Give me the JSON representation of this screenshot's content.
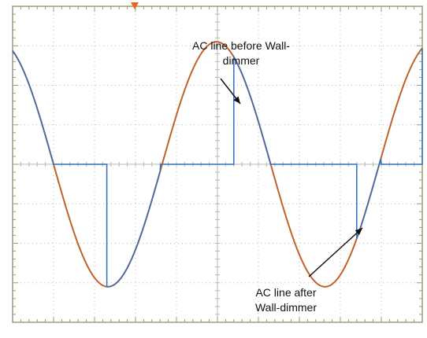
{
  "annotations": {
    "before": [
      "AC line before Wall-",
      "dimmer"
    ],
    "after": [
      "AC line  after",
      "Wall-dimmer"
    ]
  },
  "chart_data": {
    "type": "line",
    "title": "",
    "xlabel": "",
    "ylabel": "",
    "xlim": [
      0,
      10
    ],
    "ylim": [
      -4,
      4
    ],
    "grid": true,
    "grid_divisions": {
      "x": 10,
      "y": 8
    },
    "colors": {
      "before": "#c0622a",
      "after": "#2f6fc0",
      "grid": "#b8b8b0",
      "frame": "#a09a7a",
      "trigger_marker": "#e8641e",
      "arrow": "#111111"
    },
    "series": [
      {
        "id": "before",
        "waveform": "sine",
        "amplitude": 3.1,
        "period": 5.3,
        "phase_zero_x": 1.0
      },
      {
        "id": "after",
        "waveform": "phase-cut sine",
        "amplitude": 3.1,
        "period": 5.3,
        "phase_zero_x": 1.0,
        "cut_in_x": [
          0.0,
          2.3,
          5.4,
          8.4
        ],
        "zero_segments": [
          [
            1.0,
            2.3
          ],
          [
            3.6,
            5.4
          ],
          [
            6.3,
            8.4
          ],
          [
            9.0,
            10.0
          ]
        ]
      }
    ]
  }
}
